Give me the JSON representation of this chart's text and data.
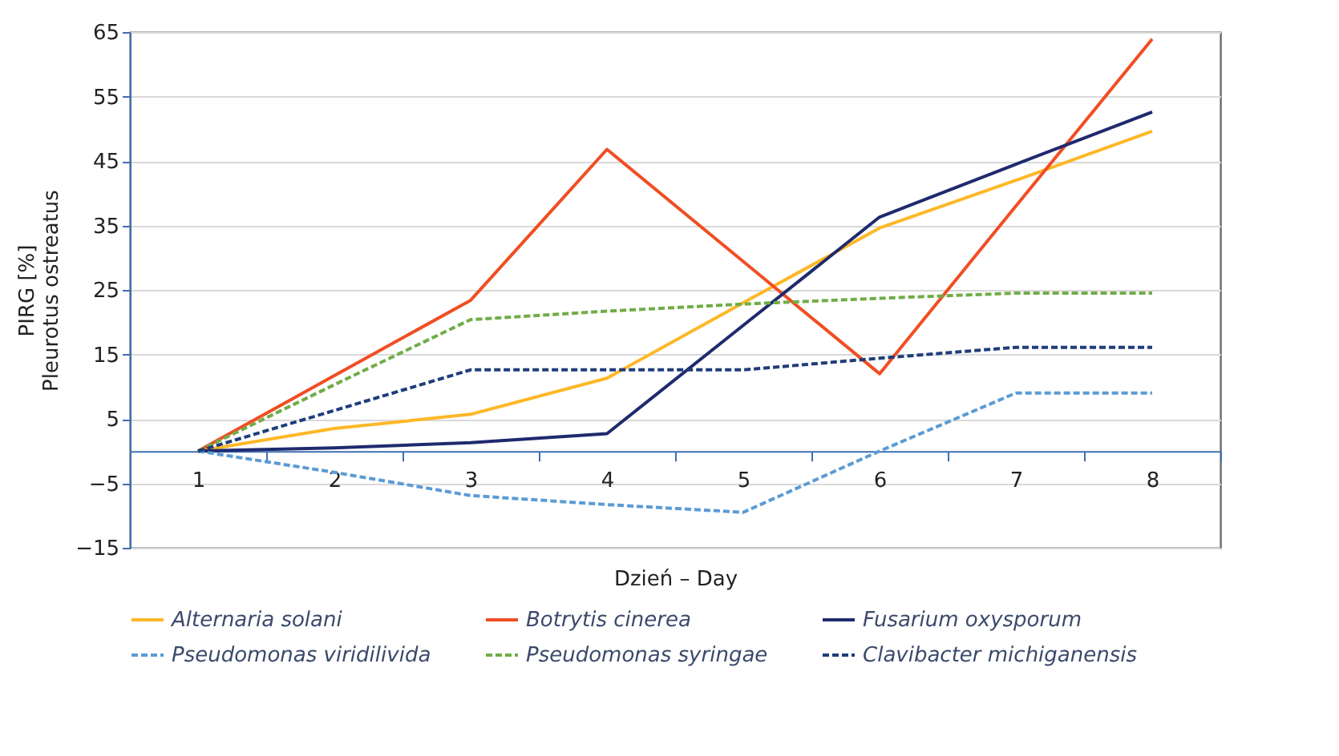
{
  "chart_data": {
    "type": "line",
    "xlabel": "Dzień – Day",
    "ylabel": "PIRG [%]\nPleurotus ostreatus",
    "categories": [
      "1",
      "2",
      "3",
      "4",
      "5",
      "6",
      "7",
      "8"
    ],
    "series": [
      {
        "name": "Alternaria solani",
        "color": "#fdb827",
        "line_style": "solid",
        "values": [
          0,
          3.5,
          5.7,
          11.3,
          23,
          34.6,
          42,
          49.6
        ]
      },
      {
        "name": "Botrytis cinerea",
        "color": "#f04e23",
        "line_style": "solid",
        "values": [
          0,
          11.7,
          23.4,
          46.8,
          29.4,
          12,
          38,
          63.9
        ]
      },
      {
        "name": "Fusarium oxysporum",
        "color": "#1f2a6e",
        "line_style": "solid",
        "values": [
          0,
          0.5,
          1.3,
          2.7,
          19.5,
          36.3,
          44.5,
          52.6
        ]
      },
      {
        "name": "Pseudomonas viridilivida",
        "color": "#5b9bd5",
        "line_style": "dashed",
        "values": [
          0,
          -3.3,
          -6.9,
          -8.3,
          -9.5,
          0,
          9,
          9
        ]
      },
      {
        "name": "Pseudomonas syringae",
        "color": "#70ad47",
        "line_style": "dashed",
        "values": [
          0,
          10.3,
          20.4,
          21.7,
          22.8,
          23.7,
          24.5,
          24.5
        ]
      },
      {
        "name": "Clavibacter michiganensis",
        "color": "#1f3d7a",
        "line_style": "dashed",
        "values": [
          0,
          6.3,
          12.6,
          12.6,
          12.6,
          14.4,
          16.1,
          16.1
        ]
      }
    ],
    "ylim": [
      -15,
      65
    ],
    "yticks": [
      -15,
      -5,
      5,
      15,
      25,
      35,
      45,
      55,
      65
    ],
    "grid": "y",
    "legend": "bottom",
    "marker": "none"
  }
}
